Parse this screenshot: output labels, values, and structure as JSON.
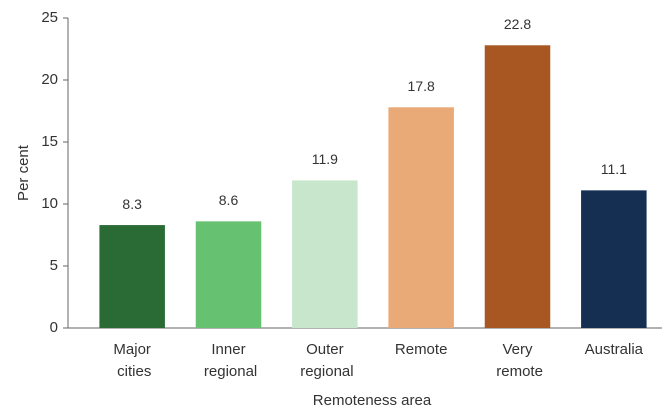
{
  "chart_data": {
    "type": "bar",
    "x_label": "Remoteness area",
    "y_label": "Per cent",
    "categories": [
      "Major cities",
      "Inner regional",
      "Outer regional",
      "Remote",
      "Very remote",
      "Australia"
    ],
    "values": [
      8.3,
      8.6,
      11.9,
      17.8,
      22.8,
      11.1
    ],
    "colors": [
      "#2a6b35",
      "#66c170",
      "#c8e6cc",
      "#eaaa78",
      "#a85722",
      "#142f52"
    ],
    "ylim": [
      0,
      25
    ],
    "yticks": [
      0,
      5,
      10,
      15,
      20,
      25
    ],
    "grid": false
  }
}
